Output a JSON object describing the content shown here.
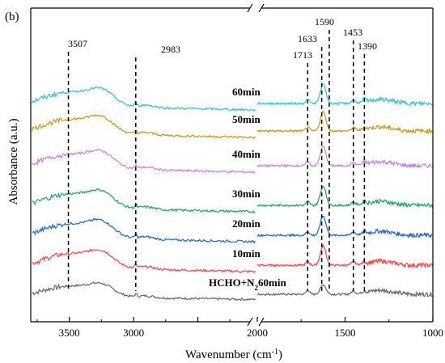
{
  "chart_data": {
    "type": "line",
    "panel_label": "(b)",
    "xlabel": "Wavenumber (cm",
    "xlabel_sup": "-1",
    "xlabel_end": ")",
    "ylabel": "Absorbance (a.u.)",
    "x_axis_break": true,
    "x_segments": [
      {
        "range": [
          3800,
          2050
        ],
        "ticks": [
          3500,
          3000,
          2500
        ]
      },
      {
        "range": [
          2000,
          1000
        ],
        "ticks": [
          2000,
          1500,
          1000
        ]
      }
    ],
    "tick_labels": [
      "3500",
      "3000",
      "2000",
      "1500",
      "1000"
    ],
    "peaks": [
      {
        "label": "3507",
        "x": 3507
      },
      {
        "label": "2983",
        "x": 2983
      },
      {
        "label": "1713",
        "x": 1713
      },
      {
        "label": "1633",
        "x": 1633
      },
      {
        "label": "1590",
        "x": 1590
      },
      {
        "label": "1453",
        "x": 1453
      },
      {
        "label": "1390",
        "x": 1390
      }
    ],
    "series": [
      {
        "name": "HCHO+N",
        "sub": "2",
        "suffix": "60min",
        "color": "#666666",
        "offset": 0
      },
      {
        "name": "10min",
        "color": "#ff4040",
        "offset": 1
      },
      {
        "name": "20min",
        "color": "#1f66d1",
        "offset": 2
      },
      {
        "name": "30min",
        "color": "#19a463",
        "offset": 3
      },
      {
        "name": "40min",
        "color": "#c77fe0",
        "offset": 4
      },
      {
        "name": "50min",
        "color": "#cf9410",
        "offset": 5
      },
      {
        "name": "60min",
        "color": "#29c8c8",
        "offset": 6
      }
    ]
  }
}
